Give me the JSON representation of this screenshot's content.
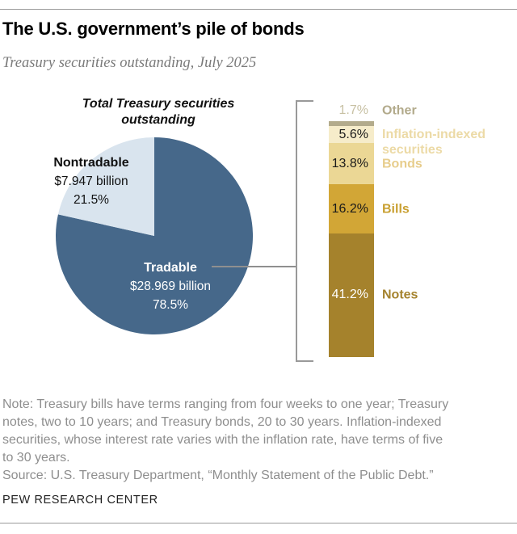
{
  "header": {
    "title": "The U.S. government’s pile of bonds",
    "subtitle": "Treasury securities outstanding, July 2025"
  },
  "chart_data": [
    {
      "type": "pie",
      "title": "Total Treasury securities outstanding",
      "start": "top",
      "direction": "clockwise",
      "slices": [
        {
          "label": "Tradable",
          "value_text": "$28.969 billion",
          "pct": 78.5,
          "pct_text": "78.5%",
          "color": "#46688a",
          "text_color": "#ffffff"
        },
        {
          "label": "Nontradable",
          "value_text": "$7.947 billion",
          "pct": 21.5,
          "pct_text": "21.5%",
          "color": "#d9e4ee",
          "text_color": "#111111"
        }
      ]
    },
    {
      "type": "bar",
      "stacked": true,
      "total_pct": 78.5,
      "segments": [
        {
          "label": "Other",
          "pct": 1.7,
          "pct_text": "1.7%",
          "color": "#b3ab8c",
          "pct_color": "#c8c1a4",
          "label_color": "#b2aa8b",
          "pct_outside": true
        },
        {
          "label": "Inflation-indexed securities",
          "pct": 5.6,
          "pct_text": "5.6%",
          "color": "#f6ecca",
          "pct_color": "#1a1a1a",
          "label_color": "#ecdaa6",
          "label_dy": 9
        },
        {
          "label": "Bonds",
          "pct": 13.8,
          "pct_text": "13.8%",
          "color": "#ebd795",
          "pct_color": "#1a1a1a",
          "label_color": "#e7cd8c"
        },
        {
          "label": "Bills",
          "pct": 16.2,
          "pct_text": "16.2%",
          "color": "#d2a636",
          "pct_color": "#1a1a1a",
          "label_color": "#c9a032"
        },
        {
          "label": "Notes",
          "pct": 41.2,
          "pct_text": "41.2%",
          "color": "#a5822c",
          "pct_color": "#ffffff",
          "label_color": "#a5832e"
        }
      ]
    }
  ],
  "note": {
    "lines": [
      "Note: Treasury bills have terms ranging from four weeks to one year; Treasury",
      "notes, two to 10 years; and Treasury bonds, 20 to 30 years. Inflation-indexed",
      "securities, whose interest rate varies with the inflation rate, have terms of five",
      "to 30 years."
    ]
  },
  "source": {
    "text": "Source: U.S. Treasury Department, “Monthly Statement of the Public Debt.”"
  },
  "footer": {
    "wordmark": "PEW RESEARCH CENTER"
  }
}
